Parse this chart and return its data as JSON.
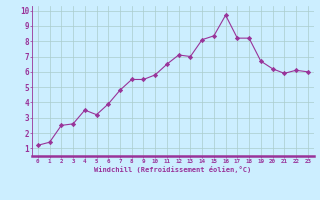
{
  "x": [
    0,
    1,
    2,
    3,
    4,
    5,
    6,
    7,
    8,
    9,
    10,
    11,
    12,
    13,
    14,
    15,
    16,
    17,
    18,
    19,
    20,
    21,
    22,
    23
  ],
  "y": [
    1.2,
    1.4,
    2.5,
    2.6,
    3.5,
    3.2,
    3.9,
    4.8,
    5.5,
    5.5,
    5.8,
    6.5,
    7.1,
    7.0,
    8.1,
    8.35,
    9.7,
    8.2,
    8.2,
    6.7,
    6.2,
    5.9,
    6.1,
    6.0
  ],
  "line_color": "#993399",
  "marker": "D",
  "marker_size": 2.2,
  "background_color": "#cceeff",
  "grid_color": "#aacccc",
  "xlabel": "Windchill (Refroidissement éolien,°C)",
  "xlim": [
    -0.5,
    23.5
  ],
  "ylim": [
    0.5,
    10.3
  ],
  "xticks": [
    0,
    1,
    2,
    3,
    4,
    5,
    6,
    7,
    8,
    9,
    10,
    11,
    12,
    13,
    14,
    15,
    16,
    17,
    18,
    19,
    20,
    21,
    22,
    23
  ],
  "yticks": [
    1,
    2,
    3,
    4,
    5,
    6,
    7,
    8,
    9,
    10
  ],
  "xlabel_color": "#993399",
  "tick_color": "#993399",
  "spine_color": "#993399",
  "axis_line_color": "#993399"
}
